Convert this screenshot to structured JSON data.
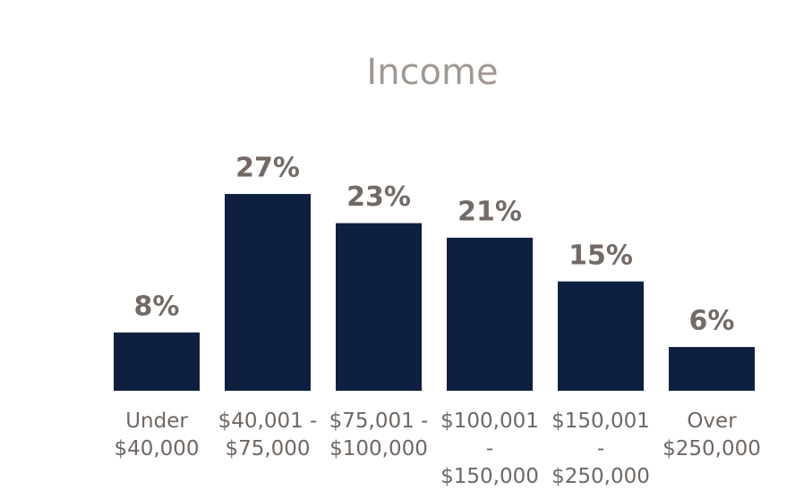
{
  "chart_data": {
    "type": "bar",
    "title": "Income",
    "categories": [
      "Under $40,000",
      "$40,001 - $75,000",
      "$75,001 - $100,000",
      "$100,001 - $150,000",
      "$150,001 - $250,000",
      "Over $250,000"
    ],
    "values": [
      8,
      27,
      23,
      21,
      15,
      6
    ],
    "value_labels": [
      "8%",
      "27%",
      "23%",
      "21%",
      "15%",
      "6%"
    ],
    "color": "#0f1f40"
  }
}
